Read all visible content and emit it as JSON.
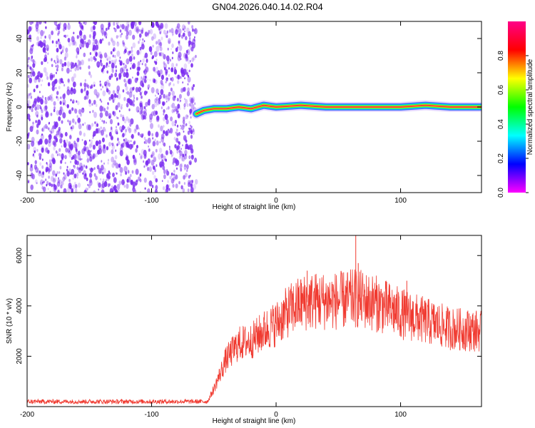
{
  "title": "GN04.2026.040.14.02.R04",
  "colors": {
    "snr_line": "#f03a30",
    "scatter_purple": "#7b2cf0",
    "spectrum_band": "#ff3a3a"
  },
  "chart_data": [
    {
      "type": "heatmap",
      "xlabel": "Height of straight line (km)",
      "ylabel": "Frequency (Hz)",
      "xlim": [
        -200,
        165
      ],
      "ylim": [
        -50,
        50
      ],
      "x_ticks": [
        "-200",
        "-100",
        "0",
        "100"
      ],
      "x_tick_values": [
        -200,
        -100,
        0,
        100
      ],
      "y_ticks": [
        "40",
        "20",
        "0",
        "-20",
        "-40"
      ],
      "y_tick_values": [
        40,
        20,
        0,
        -20,
        -40
      ],
      "noise_region_x": [
        -200,
        -64
      ],
      "signal_trace": [
        {
          "x": -64,
          "y": -4
        },
        {
          "x": -58,
          "y": -2
        },
        {
          "x": -50,
          "y": -1
        },
        {
          "x": -40,
          "y": -1
        },
        {
          "x": -30,
          "y": 0
        },
        {
          "x": -20,
          "y": -1
        },
        {
          "x": -10,
          "y": 1
        },
        {
          "x": 0,
          "y": 0
        },
        {
          "x": 20,
          "y": 1
        },
        {
          "x": 40,
          "y": 0
        },
        {
          "x": 60,
          "y": 0
        },
        {
          "x": 80,
          "y": 0
        },
        {
          "x": 100,
          "y": 0
        },
        {
          "x": 120,
          "y": 1
        },
        {
          "x": 140,
          "y": 0
        },
        {
          "x": 165,
          "y": 0
        }
      ],
      "colorbar": {
        "label": "Normalized spectral amplitude",
        "range": [
          0,
          1
        ],
        "ticks": [
          "0.0",
          "0.2",
          "0.4",
          "0.6",
          "0.8"
        ],
        "tick_values": [
          0,
          0.2,
          0.4,
          0.6,
          0.8
        ],
        "stops": [
          "#ff00ff",
          "#0000ff",
          "#00ffff",
          "#00ff00",
          "#ffff00",
          "#ff0000",
          "#ff0088"
        ]
      }
    },
    {
      "type": "line",
      "xlabel": "Height of straight line (km)",
      "ylabel": "SNR (10 * v/v)",
      "xlim": [
        -200,
        165
      ],
      "ylim": [
        0,
        6800
      ],
      "x_ticks": [
        "-200",
        "-100",
        "0",
        "100"
      ],
      "x_tick_values": [
        -200,
        -100,
        0,
        100
      ],
      "y_ticks": [
        "6000",
        "4000",
        "2000"
      ],
      "y_tick_values": [
        6000,
        4000,
        2000
      ],
      "envelope": [
        {
          "x": -200,
          "y": 200
        },
        {
          "x": -100,
          "y": 200
        },
        {
          "x": -55,
          "y": 200
        },
        {
          "x": -50,
          "y": 700
        },
        {
          "x": -45,
          "y": 1300
        },
        {
          "x": -40,
          "y": 1900
        },
        {
          "x": -30,
          "y": 2500
        },
        {
          "x": -20,
          "y": 2600
        },
        {
          "x": -10,
          "y": 3000
        },
        {
          "x": 0,
          "y": 3300
        },
        {
          "x": 10,
          "y": 3800
        },
        {
          "x": 20,
          "y": 4100
        },
        {
          "x": 30,
          "y": 4200
        },
        {
          "x": 50,
          "y": 4200
        },
        {
          "x": 65,
          "y": 4300
        },
        {
          "x": 80,
          "y": 4100
        },
        {
          "x": 100,
          "y": 3700
        },
        {
          "x": 120,
          "y": 3400
        },
        {
          "x": 140,
          "y": 3100
        },
        {
          "x": 165,
          "y": 3000
        }
      ],
      "spikes": [
        {
          "x": 25,
          "y": 5400
        },
        {
          "x": 64,
          "y": 6800
        },
        {
          "x": 66,
          "y": 5700
        },
        {
          "x": 105,
          "y": 5000
        },
        {
          "x": 155,
          "y": 3700
        }
      ]
    }
  ]
}
